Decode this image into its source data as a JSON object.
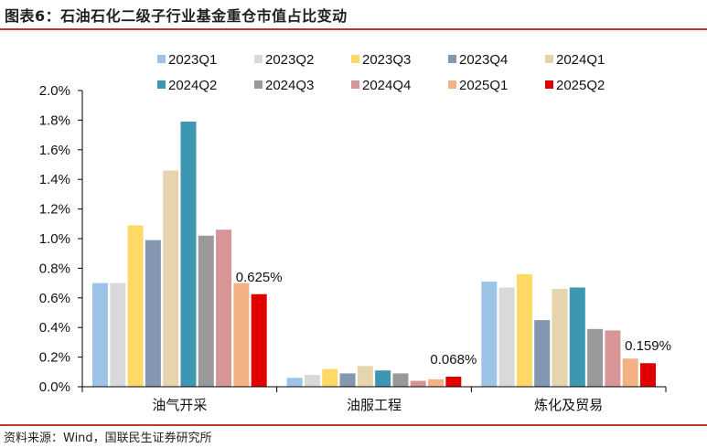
{
  "header": {
    "title": "图表6：石油石化二级子行业基金重仓市值占比变动"
  },
  "footer": {
    "source": "资料来源：Wind，国联民生证券研究所"
  },
  "chart_data": {
    "type": "bar",
    "categories": [
      "油气开采",
      "油服工程",
      "炼化及贸易"
    ],
    "y_ticks": [
      "0.0%",
      "0.2%",
      "0.4%",
      "0.6%",
      "0.8%",
      "1.0%",
      "1.2%",
      "1.4%",
      "1.6%",
      "1.8%",
      "2.0%"
    ],
    "ylim": [
      0,
      2.0
    ],
    "unit": "%",
    "legend_position": "top",
    "series": [
      {
        "name": "2023Q1",
        "color": "#9DC3E6",
        "values": [
          0.7,
          0.06,
          0.71
        ]
      },
      {
        "name": "2023Q2",
        "color": "#D9D9D9",
        "values": [
          0.7,
          0.08,
          0.67
        ]
      },
      {
        "name": "2023Q3",
        "color": "#FFD966",
        "values": [
          1.09,
          0.12,
          0.76
        ]
      },
      {
        "name": "2023Q4",
        "color": "#8497B0",
        "values": [
          0.99,
          0.09,
          0.45
        ]
      },
      {
        "name": "2024Q1",
        "color": "#E6D5AC",
        "values": [
          1.46,
          0.14,
          0.66
        ]
      },
      {
        "name": "2024Q2",
        "color": "#3E97B0",
        "values": [
          1.79,
          0.11,
          0.67
        ]
      },
      {
        "name": "2024Q3",
        "color": "#999999",
        "values": [
          1.02,
          0.09,
          0.39
        ]
      },
      {
        "name": "2024Q4",
        "color": "#D89595",
        "values": [
          1.06,
          0.04,
          0.38
        ]
      },
      {
        "name": "2025Q1",
        "color": "#F4B183",
        "values": [
          0.7,
          0.05,
          0.19
        ]
      },
      {
        "name": "2025Q2",
        "color": "#E00000",
        "values": [
          0.625,
          0.068,
          0.159
        ]
      }
    ],
    "data_labels": [
      {
        "category_index": 0,
        "series_index": 9,
        "text": "0.625%"
      },
      {
        "category_index": 1,
        "series_index": 9,
        "text": "0.068%"
      },
      {
        "category_index": 2,
        "series_index": 9,
        "text": "0.159%"
      }
    ]
  }
}
